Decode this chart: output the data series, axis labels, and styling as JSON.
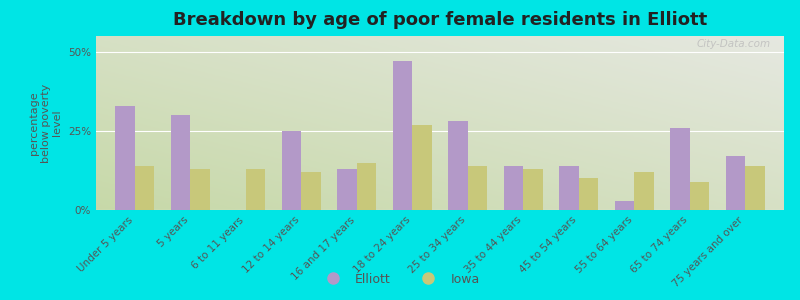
{
  "title": "Breakdown by age of poor female residents in Elliott",
  "ylabel": "percentage\nbelow poverty\nlevel",
  "categories": [
    "Under 5 years",
    "5 years",
    "6 to 11 years",
    "12 to 14 years",
    "16 and 17 years",
    "18 to 24 years",
    "25 to 34 years",
    "35 to 44 years",
    "45 to 54 years",
    "55 to 64 years",
    "65 to 74 years",
    "75 years and over"
  ],
  "elliott": [
    33,
    30,
    0,
    25,
    13,
    47,
    28,
    14,
    14,
    3,
    26,
    17
  ],
  "iowa": [
    14,
    13,
    13,
    12,
    15,
    27,
    14,
    13,
    10,
    12,
    9,
    14
  ],
  "elliott_color": "#b399c8",
  "iowa_color": "#c8c87a",
  "background_color": "#00e5e5",
  "plot_bg_color": "#dce8c8",
  "yticks": [
    0,
    25,
    50
  ],
  "ytick_labels": [
    "0%",
    "25%",
    "50%"
  ],
  "ylim": [
    0,
    55
  ],
  "bar_width": 0.35,
  "title_fontsize": 13,
  "axis_label_fontsize": 8,
  "tick_fontsize": 7.5,
  "legend_labels": [
    "Elliott",
    "Iowa"
  ],
  "watermark": "City-Data.com"
}
